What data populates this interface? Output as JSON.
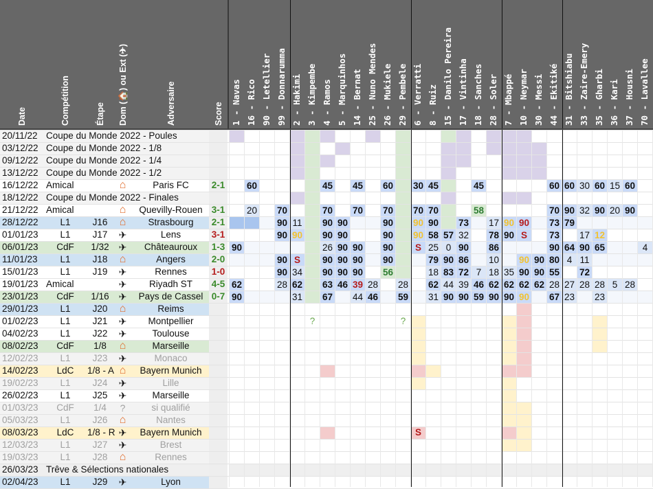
{
  "headers": [
    "Date",
    "Compétition",
    "Étape",
    "Dom (🏠) ou Ext (✈)",
    "Adversaire",
    "Score"
  ],
  "players": [
    "1 - Navas",
    "16 - Rico",
    "90 - Letellier",
    "99 - Donnarumma",
    "2 - Hakimi",
    "3 - Kimpembe",
    "4 - Ramos",
    "5 - Marquinhos",
    "14 - Bernat",
    "25 - Nuno Mendes",
    "26 - Mukiele",
    "29 - Pembele",
    "6 - Verratti",
    "8 - Ruiz",
    "15 - Danilo Pereira",
    "17 - Vintinha",
    "18 - Sanches",
    "28 - Soler",
    "7 - Mbappé",
    "10 - Neymar",
    "30 - Messi",
    "44 - Ekitiké",
    "31 - Bitshiabu",
    "33 - Zaire-Emery",
    "35 - Gharbi",
    "36 - Kari",
    "37 - Housni",
    "70 - Lavallee"
  ],
  "icons": {
    "home": "house-icon",
    "away": "plane-icon"
  },
  "colors": {
    "header": "#676767",
    "score_win": "#3a8a2a",
    "score_loss": "#b51c1c",
    "played": "#c9daf8",
    "played_strong": "#a9c5ee",
    "home_row": "#cfe2f3",
    "cdf_row": "#d9ead3",
    "ldc_row": "#fff2cc",
    "competition_cell": "#d9d2e9",
    "kimpembe_col": "#d9ead3",
    "injury": "#f4cccc",
    "suspension": "#fff2cc",
    "new_bg": "#d9ead3",
    "yellow_text": "#f1c232"
  },
  "rows": [
    {
      "date": "20/11/22",
      "comp": "Coupe du Monde 2022 - Poules",
      "etape": "",
      "lieu": "",
      "adv": "",
      "score": "",
      "res": ""
    },
    {
      "date": "03/12/22",
      "comp": "Coupe du Monde 2022 - 1/8",
      "etape": "",
      "lieu": "",
      "adv": "",
      "score": "",
      "res": ""
    },
    {
      "date": "09/12/22",
      "comp": "Coupe du Monde 2022 - 1/4",
      "etape": "",
      "lieu": "",
      "adv": "",
      "score": "",
      "res": ""
    },
    {
      "date": "13/12/22",
      "comp": "Coupe du Monde 2022 - 1/2",
      "etape": "",
      "lieu": "",
      "adv": "",
      "score": "",
      "res": ""
    },
    {
      "date": "16/12/22",
      "comp": "Amical",
      "etape": "",
      "lieu": "home",
      "adv": "Paris FC",
      "score": "2-1",
      "res": "w"
    },
    {
      "date": "18/12/22",
      "comp": "Coupe du Monde 2022 - Finales",
      "etape": "",
      "lieu": "",
      "adv": "",
      "score": "",
      "res": ""
    },
    {
      "date": "21/12/22",
      "comp": "Amical",
      "etape": "",
      "lieu": "home",
      "adv": "Quevilly-Rouen",
      "score": "3-1",
      "res": "w"
    },
    {
      "date": "28/12/22",
      "comp": "L1",
      "etape": "J16",
      "lieu": "home",
      "adv": "Strasbourg",
      "score": "2-1",
      "res": "w"
    },
    {
      "date": "01/01/23",
      "comp": "L1",
      "etape": "J17",
      "lieu": "away",
      "adv": "Lens",
      "score": "3-1",
      "res": "l"
    },
    {
      "date": "06/01/23",
      "comp": "CdF",
      "etape": "1/32",
      "lieu": "away",
      "adv": "Châteauroux",
      "score": "1-3",
      "res": "w"
    },
    {
      "date": "11/01/23",
      "comp": "L1",
      "etape": "J18",
      "lieu": "home",
      "adv": "Angers",
      "score": "2-0",
      "res": "w"
    },
    {
      "date": "15/01/23",
      "comp": "L1",
      "etape": "J19",
      "lieu": "away",
      "adv": "Rennes",
      "score": "1-0",
      "res": "l"
    },
    {
      "date": "19/01/23",
      "comp": "Amical",
      "etape": "",
      "lieu": "away",
      "adv": "Riyadh ST",
      "score": "4-5",
      "res": "w"
    },
    {
      "date": "23/01/23",
      "comp": "CdF",
      "etape": "1/16",
      "lieu": "away",
      "adv": "Pays de Cassel",
      "score": "0-7",
      "res": "w"
    },
    {
      "date": "29/01/23",
      "comp": "L1",
      "etape": "J20",
      "lieu": "home",
      "adv": "Reims",
      "score": "",
      "res": ""
    },
    {
      "date": "01/02/23",
      "comp": "L1",
      "etape": "J21",
      "lieu": "away",
      "adv": "Montpellier",
      "score": "",
      "res": ""
    },
    {
      "date": "04/02/23",
      "comp": "L1",
      "etape": "J22",
      "lieu": "away",
      "adv": "Toulouse",
      "score": "",
      "res": ""
    },
    {
      "date": "08/02/23",
      "comp": "CdF",
      "etape": "1/8",
      "lieu": "home",
      "adv": "Marseille",
      "score": "",
      "res": ""
    },
    {
      "date": "12/02/23",
      "comp": "L1",
      "etape": "J23",
      "lieu": "away",
      "adv": "Monaco",
      "score": "",
      "res": ""
    },
    {
      "date": "14/02/23",
      "comp": "LdC",
      "etape": "1/8 - A",
      "lieu": "home",
      "adv": "Bayern Munich",
      "score": "",
      "res": ""
    },
    {
      "date": "19/02/23",
      "comp": "L1",
      "etape": "J24",
      "lieu": "away",
      "adv": "Lille",
      "score": "",
      "res": ""
    },
    {
      "date": "26/02/23",
      "comp": "L1",
      "etape": "J25",
      "lieu": "away",
      "adv": "Marseille",
      "score": "",
      "res": ""
    },
    {
      "date": "01/03/23",
      "comp": "CdF",
      "etape": "1/4",
      "lieu": "unknown",
      "adv": "si qualifié",
      "score": "",
      "res": ""
    },
    {
      "date": "05/03/23",
      "comp": "L1",
      "etape": "J26",
      "lieu": "home",
      "adv": "Nantes",
      "score": "",
      "res": ""
    },
    {
      "date": "08/03/23",
      "comp": "LdC",
      "etape": "1/8 - R",
      "lieu": "away",
      "adv": "Bayern Munich",
      "score": "",
      "res": ""
    },
    {
      "date": "12/03/23",
      "comp": "L1",
      "etape": "J27",
      "lieu": "away",
      "adv": "Brest",
      "score": "",
      "res": ""
    },
    {
      "date": "19/03/23",
      "comp": "L1",
      "etape": "J28",
      "lieu": "home",
      "adv": "Rennes",
      "score": "",
      "res": ""
    },
    {
      "date": "26/03/23",
      "comp": "Trêve & Sélections nationales",
      "etape": "",
      "lieu": "",
      "adv": "",
      "score": "",
      "res": ""
    },
    {
      "date": "02/04/23",
      "comp": "L1",
      "etape": "J29",
      "lieu": "away",
      "adv": "Lyon",
      "score": "",
      "res": ""
    }
  ],
  "row_colors": [
    "wc",
    "wc",
    "wc",
    "wc",
    "white",
    "wc",
    "white",
    "home",
    "white",
    "cdf",
    "home",
    "white",
    "white",
    "cdf",
    "home",
    "white",
    "white",
    "cdf",
    "grey",
    "ldc",
    "grey",
    "white",
    "grey",
    "grey",
    "ldc",
    "grey",
    "grey",
    "treve",
    "home"
  ],
  "cells": [
    [
      [
        0,
        "",
        1
      ],
      [
        4,
        "",
        1
      ],
      [
        6,
        "",
        1
      ],
      [
        9,
        "",
        1
      ],
      [
        15,
        "",
        1
      ],
      [
        17,
        "",
        1
      ],
      [
        18,
        "",
        1
      ],
      [
        19,
        "",
        1
      ]
    ],
    [
      [
        4,
        "",
        1
      ],
      [
        7,
        "",
        1
      ],
      [
        14,
        "",
        1
      ],
      [
        15,
        "",
        1
      ],
      [
        17,
        "",
        1
      ],
      [
        18,
        "",
        1
      ],
      [
        19,
        "",
        1
      ],
      [
        20,
        "",
        1
      ]
    ],
    [
      [
        4,
        "",
        1
      ],
      [
        6,
        "",
        1
      ],
      [
        14,
        "",
        1
      ],
      [
        15,
        "",
        1
      ],
      [
        18,
        "",
        1
      ],
      [
        19,
        "",
        1
      ],
      [
        20,
        "",
        1
      ]
    ],
    [
      [
        4,
        "",
        1
      ],
      [
        14,
        "",
        1
      ],
      [
        18,
        "",
        1
      ],
      [
        19,
        "",
        1
      ],
      [
        20,
        "",
        1
      ]
    ],
    [
      [
        1,
        "60",
        0
      ],
      [
        6,
        "45",
        0
      ],
      [
        8,
        "45",
        0
      ],
      [
        10,
        "60",
        0
      ],
      [
        12,
        "30",
        0
      ],
      [
        13,
        "45",
        0
      ],
      [
        16,
        "45",
        0
      ],
      [
        21,
        "60",
        0
      ],
      [
        22,
        "60",
        0
      ],
      [
        23,
        "30",
        2
      ],
      [
        24,
        "60",
        0
      ],
      [
        25,
        "15",
        2
      ],
      [
        26,
        "60",
        0
      ]
    ],
    [
      [
        4,
        "",
        1
      ],
      [
        14,
        "",
        1
      ],
      [
        18,
        "",
        1
      ],
      [
        19,
        "",
        1
      ]
    ],
    [
      [
        1,
        "20",
        2
      ],
      [
        3,
        "70",
        0
      ],
      [
        6,
        "70",
        0
      ],
      [
        8,
        "70",
        0
      ],
      [
        10,
        "70",
        0
      ],
      [
        12,
        "70",
        0
      ],
      [
        13,
        "70",
        0
      ],
      [
        16,
        "58",
        3
      ],
      [
        21,
        "70",
        0
      ],
      [
        22,
        "90",
        0
      ],
      [
        23,
        "32",
        2
      ],
      [
        24,
        "90",
        0
      ],
      [
        25,
        "20",
        2
      ],
      [
        26,
        "90",
        0
      ]
    ],
    [
      [
        0,
        "",
        0
      ],
      [
        1,
        "",
        0
      ],
      [
        3,
        "90",
        0
      ],
      [
        4,
        "11",
        2
      ],
      [
        6,
        "90",
        0
      ],
      [
        7,
        "90",
        0
      ],
      [
        10,
        "90",
        0
      ],
      [
        12,
        "90",
        4
      ],
      [
        13,
        "90",
        0
      ],
      [
        15,
        "73",
        0
      ],
      [
        17,
        "17",
        2
      ],
      [
        18,
        "90",
        4
      ],
      [
        19,
        "90",
        5
      ],
      [
        21,
        "73",
        0
      ],
      [
        22,
        "79",
        0
      ]
    ],
    [
      [
        3,
        "90",
        0
      ],
      [
        4,
        "90",
        4
      ],
      [
        6,
        "90",
        0
      ],
      [
        7,
        "90",
        0
      ],
      [
        10,
        "90",
        0
      ],
      [
        12,
        "90",
        4
      ],
      [
        13,
        "58",
        0
      ],
      [
        14,
        "57",
        0
      ],
      [
        15,
        "32",
        2
      ],
      [
        17,
        "78",
        0
      ],
      [
        18,
        "90",
        0
      ],
      [
        19,
        "S",
        5
      ],
      [
        21,
        "73",
        0
      ],
      [
        23,
        "17",
        2
      ],
      [
        24,
        "12",
        4
      ]
    ],
    [
      [
        0,
        "90",
        0
      ],
      [
        6,
        "26",
        2
      ],
      [
        7,
        "90",
        0
      ],
      [
        8,
        "90",
        0
      ],
      [
        10,
        "90",
        0
      ],
      [
        12,
        "S",
        5
      ],
      [
        13,
        "25",
        2
      ],
      [
        14,
        "0",
        2
      ],
      [
        15,
        "90",
        0
      ],
      [
        17,
        "86",
        0
      ],
      [
        21,
        "90",
        0
      ],
      [
        22,
        "64",
        0
      ],
      [
        23,
        "90",
        0
      ],
      [
        24,
        "65",
        0
      ],
      [
        27,
        "4",
        2
      ]
    ],
    [
      [
        3,
        "90",
        0
      ],
      [
        4,
        "S",
        5
      ],
      [
        6,
        "90",
        0
      ],
      [
        7,
        "90",
        0
      ],
      [
        8,
        "90",
        0
      ],
      [
        10,
        "90",
        0
      ],
      [
        13,
        "79",
        0
      ],
      [
        14,
        "90",
        0
      ],
      [
        15,
        "86",
        0
      ],
      [
        17,
        "10",
        2
      ],
      [
        19,
        "90",
        4
      ],
      [
        20,
        "90",
        0
      ],
      [
        21,
        "80",
        0
      ],
      [
        22,
        "4",
        2
      ],
      [
        23,
        "11",
        2
      ]
    ],
    [
      [
        3,
        "90",
        0
      ],
      [
        4,
        "34",
        2
      ],
      [
        6,
        "90",
        0
      ],
      [
        7,
        "90",
        0
      ],
      [
        8,
        "90",
        0
      ],
      [
        10,
        "56",
        3
      ],
      [
        13,
        "18",
        2
      ],
      [
        14,
        "83",
        0
      ],
      [
        15,
        "72",
        0
      ],
      [
        16,
        "7",
        2
      ],
      [
        17,
        "18",
        2
      ],
      [
        18,
        "35",
        2
      ],
      [
        19,
        "90",
        0
      ],
      [
        20,
        "90",
        0
      ],
      [
        21,
        "55",
        0
      ],
      [
        23,
        "72",
        0
      ]
    ],
    [
      [
        0,
        "62",
        0
      ],
      [
        3,
        "28",
        2
      ],
      [
        4,
        "62",
        0
      ],
      [
        6,
        "63",
        0
      ],
      [
        7,
        "46",
        0
      ],
      [
        8,
        "39",
        5
      ],
      [
        9,
        "28",
        2
      ],
      [
        11,
        "28",
        2
      ],
      [
        13,
        "62",
        0
      ],
      [
        14,
        "44",
        2
      ],
      [
        15,
        "39",
        2
      ],
      [
        16,
        "46",
        0
      ],
      [
        17,
        "62",
        0
      ],
      [
        18,
        "62",
        0
      ],
      [
        19,
        "62",
        0
      ],
      [
        20,
        "62",
        0
      ],
      [
        21,
        "28",
        2
      ],
      [
        22,
        "27",
        2
      ],
      [
        23,
        "28",
        2
      ],
      [
        24,
        "28",
        2
      ],
      [
        25,
        "5",
        2
      ],
      [
        26,
        "28",
        2
      ]
    ],
    [
      [
        0,
        "90",
        0
      ],
      [
        4,
        "31",
        2
      ],
      [
        6,
        "67",
        0
      ],
      [
        8,
        "44",
        2
      ],
      [
        9,
        "46",
        0
      ],
      [
        11,
        "59",
        0
      ],
      [
        13,
        "31",
        2
      ],
      [
        14,
        "90",
        0
      ],
      [
        15,
        "90",
        0
      ],
      [
        16,
        "59",
        0
      ],
      [
        17,
        "90",
        0
      ],
      [
        18,
        "90",
        0
      ],
      [
        19,
        "90",
        4
      ],
      [
        21,
        "67",
        0
      ],
      [
        22,
        "23",
        2
      ],
      [
        24,
        "23",
        2
      ]
    ]
  ],
  "marks": [
    {
      "row": 15,
      "col": 5,
      "text": "?"
    },
    {
      "row": 15,
      "col": 11,
      "text": "?"
    }
  ],
  "status_cols": {
    "injury": {
      "col": 19,
      "from": 14,
      "to": 19
    },
    "ldc_injury_rows": [
      19,
      24
    ],
    "ldc_injury_cols": [
      6,
      12,
      18
    ]
  }
}
